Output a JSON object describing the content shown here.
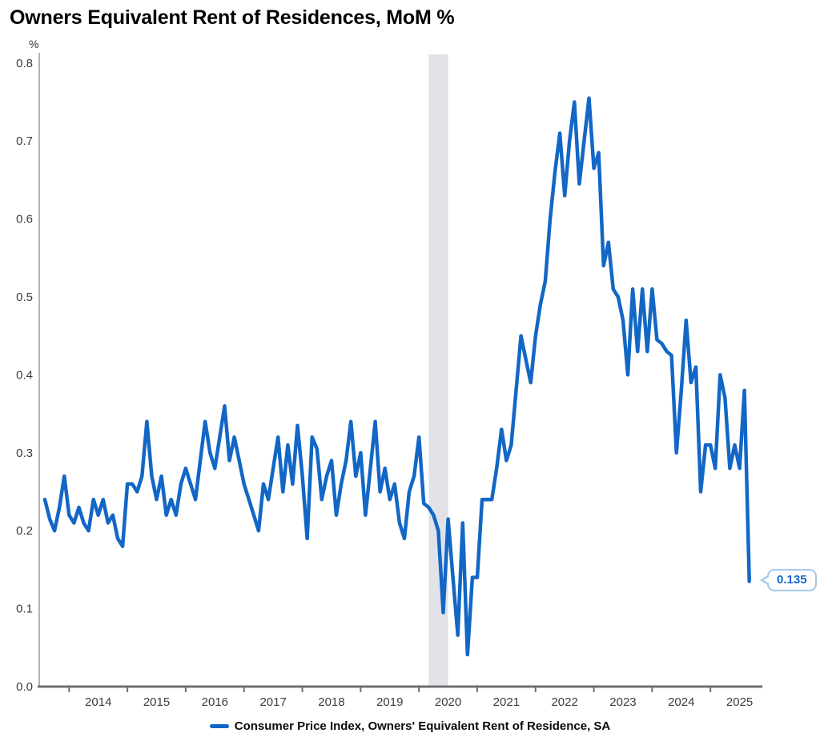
{
  "title": "Owners Equivalent Rent of Residences, MoM %",
  "y_axis": {
    "unit": "%",
    "tick_labels": [
      "0.0",
      "0.1",
      "0.2",
      "0.3",
      "0.4",
      "0.5",
      "0.6",
      "0.7",
      "0.8"
    ],
    "min": 0,
    "max": 0.8
  },
  "x_axis": {
    "year_labels": [
      "2014",
      "2015",
      "2016",
      "2017",
      "2018",
      "2019",
      "2020",
      "2021",
      "2022",
      "2023",
      "2024",
      "2025"
    ]
  },
  "legend": {
    "label": "Consumer Price Index, Owners' Equivalent Rent of Residence, SA",
    "swatch_color": "#1267C6"
  },
  "callout": {
    "value": "0.135"
  },
  "colors": {
    "line": "#1267C6",
    "recession_band": "#E2E3E9",
    "x_axis_line": "#6F6F6F",
    "y_axis_line": "#9B9B9B",
    "tick_label": "#3C3C3C",
    "callout_text": "#1065C8",
    "callout_border": "#A6C9EA"
  },
  "chart_data": {
    "type": "line",
    "title": "Owners Equivalent Rent of Residences, MoM %",
    "series_name": "Consumer Price Index, Owners' Equivalent Rent of Residence, SA",
    "ylabel": "%",
    "ylim": [
      0,
      0.8
    ],
    "grid": false,
    "legend_position": "bottom-center",
    "frequency": "monthly",
    "start_month": "2013-08",
    "end_month": "2025-09",
    "recession_band": {
      "from": "2020-03",
      "to": "2020-07"
    },
    "last_value_label": "0.135",
    "values": [
      0.24,
      0.215,
      0.2,
      0.23,
      0.27,
      0.22,
      0.21,
      0.23,
      0.21,
      0.2,
      0.24,
      0.22,
      0.24,
      0.21,
      0.22,
      0.19,
      0.18,
      0.26,
      0.26,
      0.25,
      0.27,
      0.34,
      0.27,
      0.24,
      0.27,
      0.22,
      0.24,
      0.22,
      0.26,
      0.28,
      0.26,
      0.24,
      0.29,
      0.34,
      0.3,
      0.28,
      0.32,
      0.36,
      0.29,
      0.32,
      0.29,
      0.26,
      0.24,
      0.22,
      0.2,
      0.26,
      0.24,
      0.28,
      0.32,
      0.25,
      0.31,
      0.26,
      0.335,
      0.27,
      0.19,
      0.32,
      0.305,
      0.24,
      0.27,
      0.29,
      0.22,
      0.26,
      0.29,
      0.34,
      0.27,
      0.3,
      0.22,
      0.28,
      0.34,
      0.25,
      0.28,
      0.24,
      0.26,
      0.21,
      0.19,
      0.25,
      0.27,
      0.32,
      0.235,
      0.23,
      0.22,
      0.2,
      0.095,
      0.215,
      0.14,
      0.066,
      0.21,
      0.041,
      0.14,
      0.14,
      0.24,
      0.24,
      0.24,
      0.28,
      0.33,
      0.29,
      0.31,
      0.38,
      0.45,
      0.42,
      0.39,
      0.45,
      0.49,
      0.52,
      0.6,
      0.66,
      0.71,
      0.63,
      0.7,
      0.75,
      0.645,
      0.7,
      0.755,
      0.665,
      0.685,
      0.54,
      0.57,
      0.51,
      0.5,
      0.47,
      0.4,
      0.51,
      0.43,
      0.51,
      0.43,
      0.51,
      0.445,
      0.44,
      0.43,
      0.425,
      0.3,
      0.38,
      0.47,
      0.39,
      0.41,
      0.25,
      0.31,
      0.31,
      0.28,
      0.4,
      0.37,
      0.28,
      0.31,
      0.28,
      0.38,
      0.135
    ]
  }
}
